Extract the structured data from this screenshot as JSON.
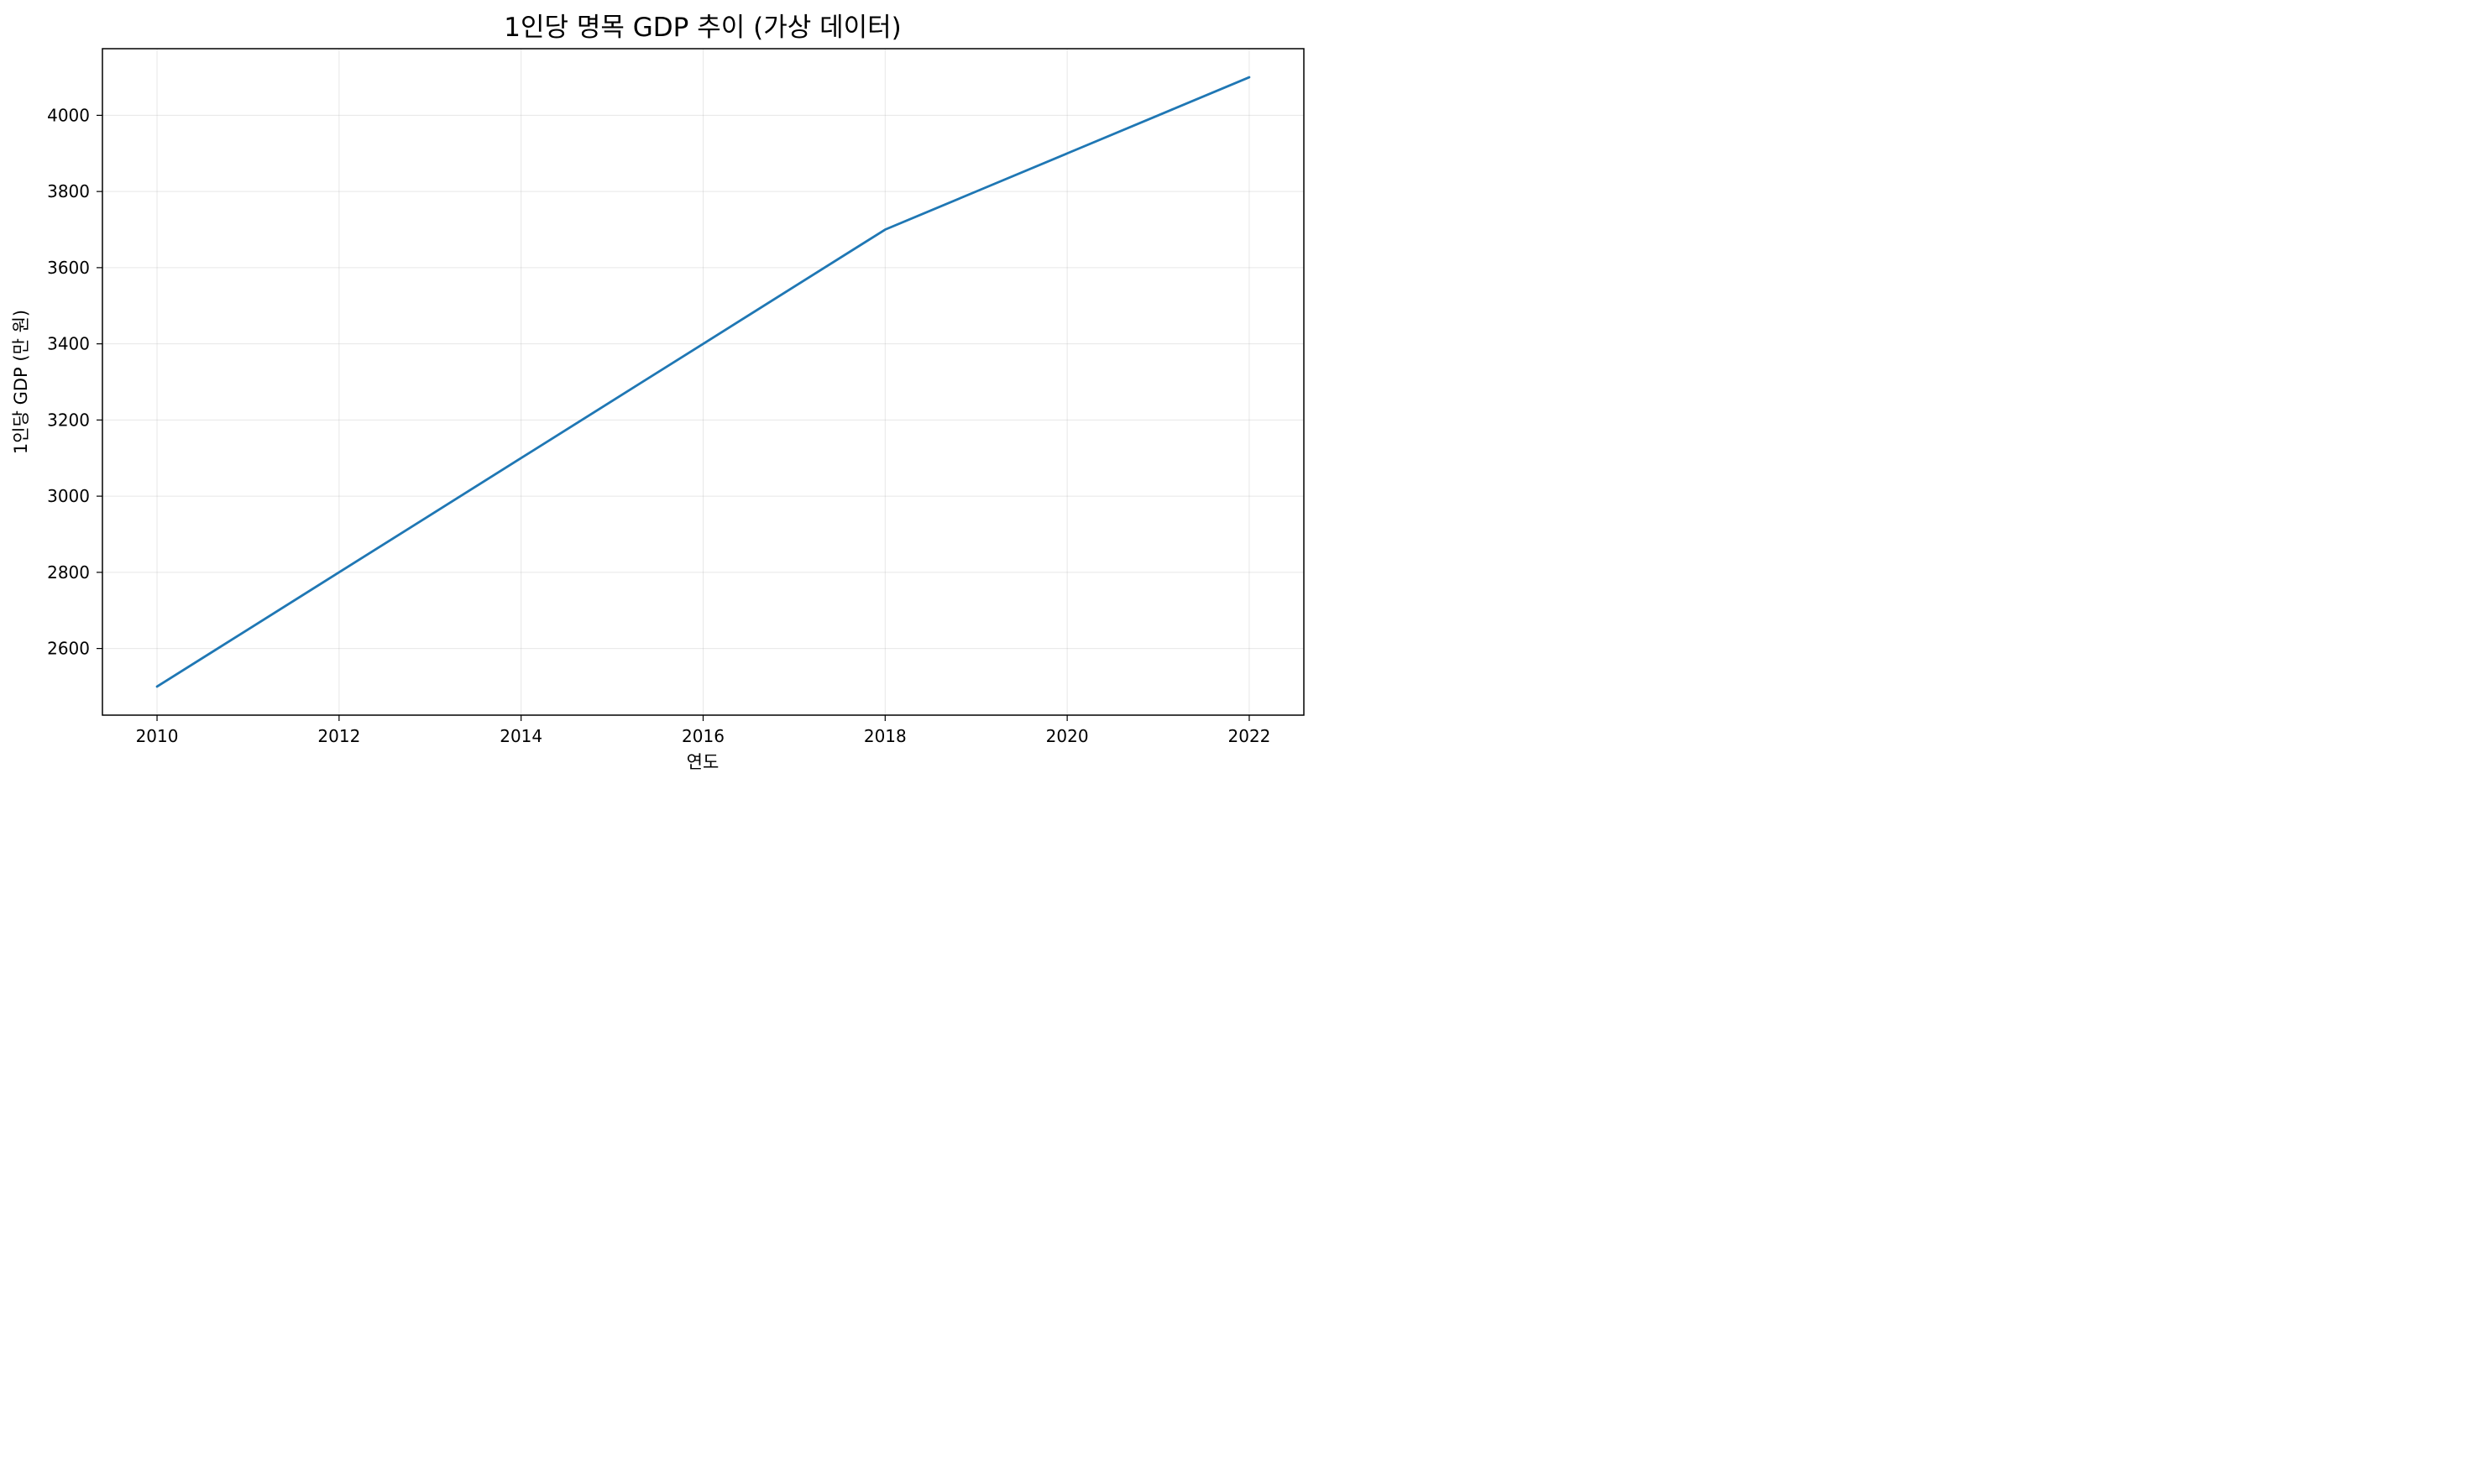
{
  "chart_data": {
    "type": "line",
    "title": "1인당 명목 GDP 추이 (가상 데이터)",
    "xlabel": "연도",
    "ylabel": "1인당 GDP (만 원)",
    "x": [
      2010,
      2011,
      2012,
      2013,
      2014,
      2015,
      2016,
      2017,
      2018,
      2019,
      2020,
      2021,
      2022
    ],
    "series": [
      {
        "values": [
          2500,
          2650,
          2800,
          2950,
          3100,
          3250,
          3400,
          3550,
          3700,
          3800,
          3900,
          4000,
          4100
        ],
        "color": "#1f77b4"
      }
    ],
    "xticks": [
      "2010",
      "2012",
      "2014",
      "2016",
      "2018",
      "2020",
      "2022"
    ],
    "yticks": [
      "2600",
      "2800",
      "3000",
      "3200",
      "3400",
      "3600",
      "3800",
      "4000"
    ],
    "xlim": [
      2009.4,
      2022.6
    ],
    "ylim": [
      2425,
      4175
    ],
    "grid": true
  }
}
